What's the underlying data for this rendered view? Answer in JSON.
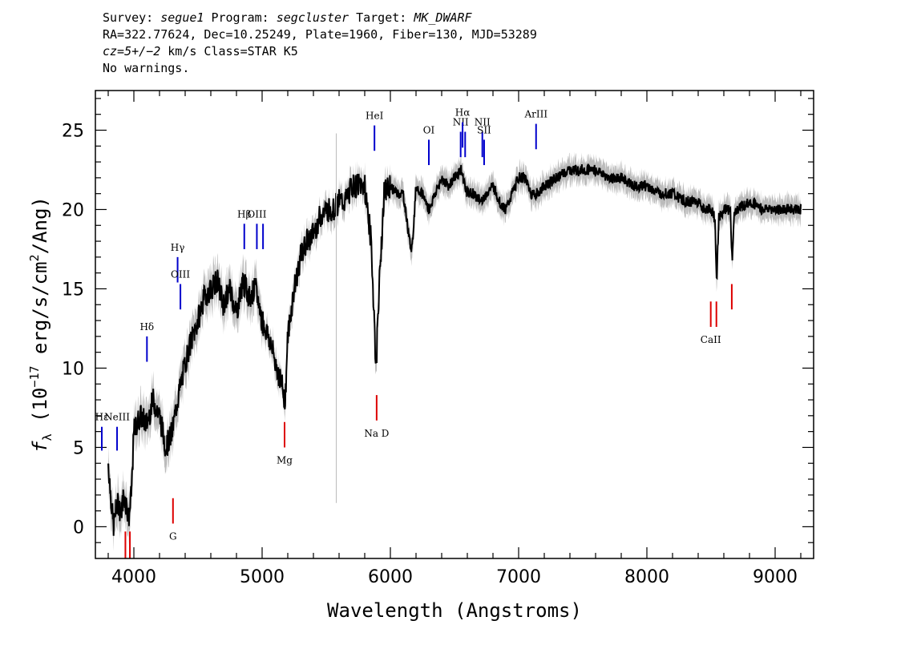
{
  "header": {
    "line1": {
      "survey_label": "Survey: ",
      "survey": "segue1",
      "program_label": " Program: ",
      "program": "segcluster",
      "target_label": " Target: ",
      "target": "MK_DWARF"
    },
    "line2": "RA=322.77624, Dec=10.25249, Plate=1960, Fiber=130, MJD=53289",
    "line3": {
      "cz_label": "cz=5+/−2",
      "cz_rest": " km/s Class=STAR K5"
    },
    "line4": "No warnings."
  },
  "chart_data": {
    "type": "line",
    "title": "",
    "xlabel": "Wavelength (Angstroms)",
    "ylabel": "fλ (10⁻¹⁷ erg/s/cm²/Ang)",
    "xlim": [
      3700,
      9300
    ],
    "ylim": [
      -2,
      27.5
    ],
    "x_ticks": [
      4000,
      5000,
      6000,
      7000,
      8000,
      9000
    ],
    "y_ticks": [
      0,
      5,
      10,
      15,
      20,
      25
    ],
    "colors": {
      "flux": "#000000",
      "error": "#bbbbbb",
      "emission": "#0000cc",
      "absorption": "#dd0000"
    },
    "series": [
      {
        "style": "flux",
        "x": [
          3800,
          3820,
          3840,
          3860,
          3880,
          3900,
          3920,
          3940,
          3960,
          3980,
          4000,
          4050,
          4100,
          4150,
          4200,
          4250,
          4300,
          4340,
          4380,
          4420,
          4460,
          4500,
          4550,
          4600,
          4650,
          4700,
          4750,
          4800,
          4850,
          4900,
          4950,
          5000,
          5050,
          5100,
          5150,
          5180,
          5200,
          5250,
          5300,
          5350,
          5400,
          5450,
          5500,
          5550,
          5600,
          5650,
          5700,
          5750,
          5800,
          5850,
          5870,
          5890,
          5900,
          5950,
          6000,
          6050,
          6100,
          6150,
          6170,
          6200,
          6250,
          6300,
          6350,
          6400,
          6450,
          6500,
          6550,
          6600,
          6650,
          6700,
          6750,
          6800,
          6850,
          6900,
          6950,
          7000,
          7050,
          7100,
          7150,
          7200,
          7300,
          7400,
          7500,
          7600,
          7700,
          7800,
          7900,
          8000,
          8100,
          8200,
          8300,
          8400,
          8450,
          8500,
          8530,
          8545,
          8560,
          8600,
          8650,
          8665,
          8680,
          8700,
          8800,
          8900,
          9000,
          9100,
          9200
        ],
        "y": [
          4.0,
          2.0,
          0.0,
          1.0,
          1.5,
          0.8,
          2.0,
          1.5,
          0.5,
          2.0,
          6.0,
          7.0,
          6.5,
          8.0,
          7.0,
          5.0,
          6.0,
          8.0,
          9.5,
          11.0,
          12.0,
          13.0,
          14.5,
          15.0,
          15.5,
          14.0,
          15.0,
          13.5,
          15.5,
          14.5,
          15.0,
          13.0,
          12.0,
          10.5,
          9.0,
          8.0,
          12.0,
          15.0,
          17.0,
          18.0,
          18.5,
          19.5,
          20.0,
          20.0,
          20.5,
          20.5,
          21.5,
          21.5,
          21.5,
          18.0,
          14.0,
          9.5,
          13.0,
          21.0,
          21.5,
          21.0,
          21.0,
          18.0,
          17.5,
          21.5,
          21.0,
          20.0,
          21.0,
          22.0,
          21.5,
          22.0,
          22.5,
          21.0,
          21.0,
          20.5,
          21.0,
          21.5,
          20.5,
          20.0,
          21.0,
          22.0,
          22.0,
          21.0,
          21.0,
          21.5,
          22.0,
          22.5,
          22.5,
          22.5,
          22.0,
          22.0,
          21.5,
          21.5,
          21.0,
          21.0,
          20.5,
          20.5,
          20.0,
          20.0,
          19.5,
          15.5,
          19.5,
          20.0,
          20.0,
          16.8,
          19.5,
          20.0,
          20.5,
          20.0,
          20.0,
          20.0,
          20.0
        ]
      }
    ],
    "emission_lines": [
      {
        "label": "Hε",
        "x": 3750,
        "y0": 4.8,
        "y1": 6.3
      },
      {
        "label": "NeIII",
        "x": 3869,
        "y0": 4.8,
        "y1": 6.3
      },
      {
        "label": "Hδ",
        "x": 4102,
        "y0": 10.4,
        "y1": 12.0
      },
      {
        "label": "Hγ",
        "x": 4341,
        "y0": 15.4,
        "y1": 17.0
      },
      {
        "label": "OIII",
        "x": 4363,
        "y0": 13.7,
        "y1": 15.3
      },
      {
        "label": "Hβ",
        "x": 4861,
        "y0": 17.5,
        "y1": 19.1
      },
      {
        "label": "OIII",
        "x": 4959,
        "y0": 17.5,
        "y1": 19.1
      },
      {
        "label": "",
        "x": 5007,
        "y0": 17.5,
        "y1": 19.1
      },
      {
        "label": "HeI",
        "x": 5876,
        "y0": 23.7,
        "y1": 25.3
      },
      {
        "label": "OI",
        "x": 6300,
        "y0": 22.8,
        "y1": 24.4
      },
      {
        "label": "NII",
        "x": 6548,
        "y0": 23.3,
        "y1": 24.9
      },
      {
        "label": "Hα",
        "x": 6563,
        "y0": 23.9,
        "y1": 25.5
      },
      {
        "label": "",
        "x": 6583,
        "y0": 23.3,
        "y1": 24.9
      },
      {
        "label": "NII",
        "x": 6717,
        "y0": 23.3,
        "y1": 24.9
      },
      {
        "label": "SII",
        "x": 6731,
        "y0": 22.8,
        "y1": 24.4
      },
      {
        "label": "ArIII",
        "x": 7136,
        "y0": 23.8,
        "y1": 25.4
      }
    ],
    "absorption_lines": [
      {
        "label": "",
        "x": 3934,
        "y0": -2.0,
        "y1": -0.3
      },
      {
        "label": "",
        "x": 3969,
        "y0": -2.0,
        "y1": -0.3
      },
      {
        "label": "G",
        "x": 4305,
        "y0": 0.2,
        "y1": 1.8
      },
      {
        "label": "Mg",
        "x": 5175,
        "y0": 5.0,
        "y1": 6.6
      },
      {
        "label": "Na D",
        "x": 5893,
        "y0": 6.7,
        "y1": 8.3
      },
      {
        "label": "CaII",
        "x": 8498,
        "y0": 12.6,
        "y1": 14.2
      },
      {
        "label": "",
        "x": 8542,
        "y0": 12.6,
        "y1": 14.2
      },
      {
        "label": "",
        "x": 8662,
        "y0": 13.7,
        "y1": 15.3
      }
    ]
  }
}
